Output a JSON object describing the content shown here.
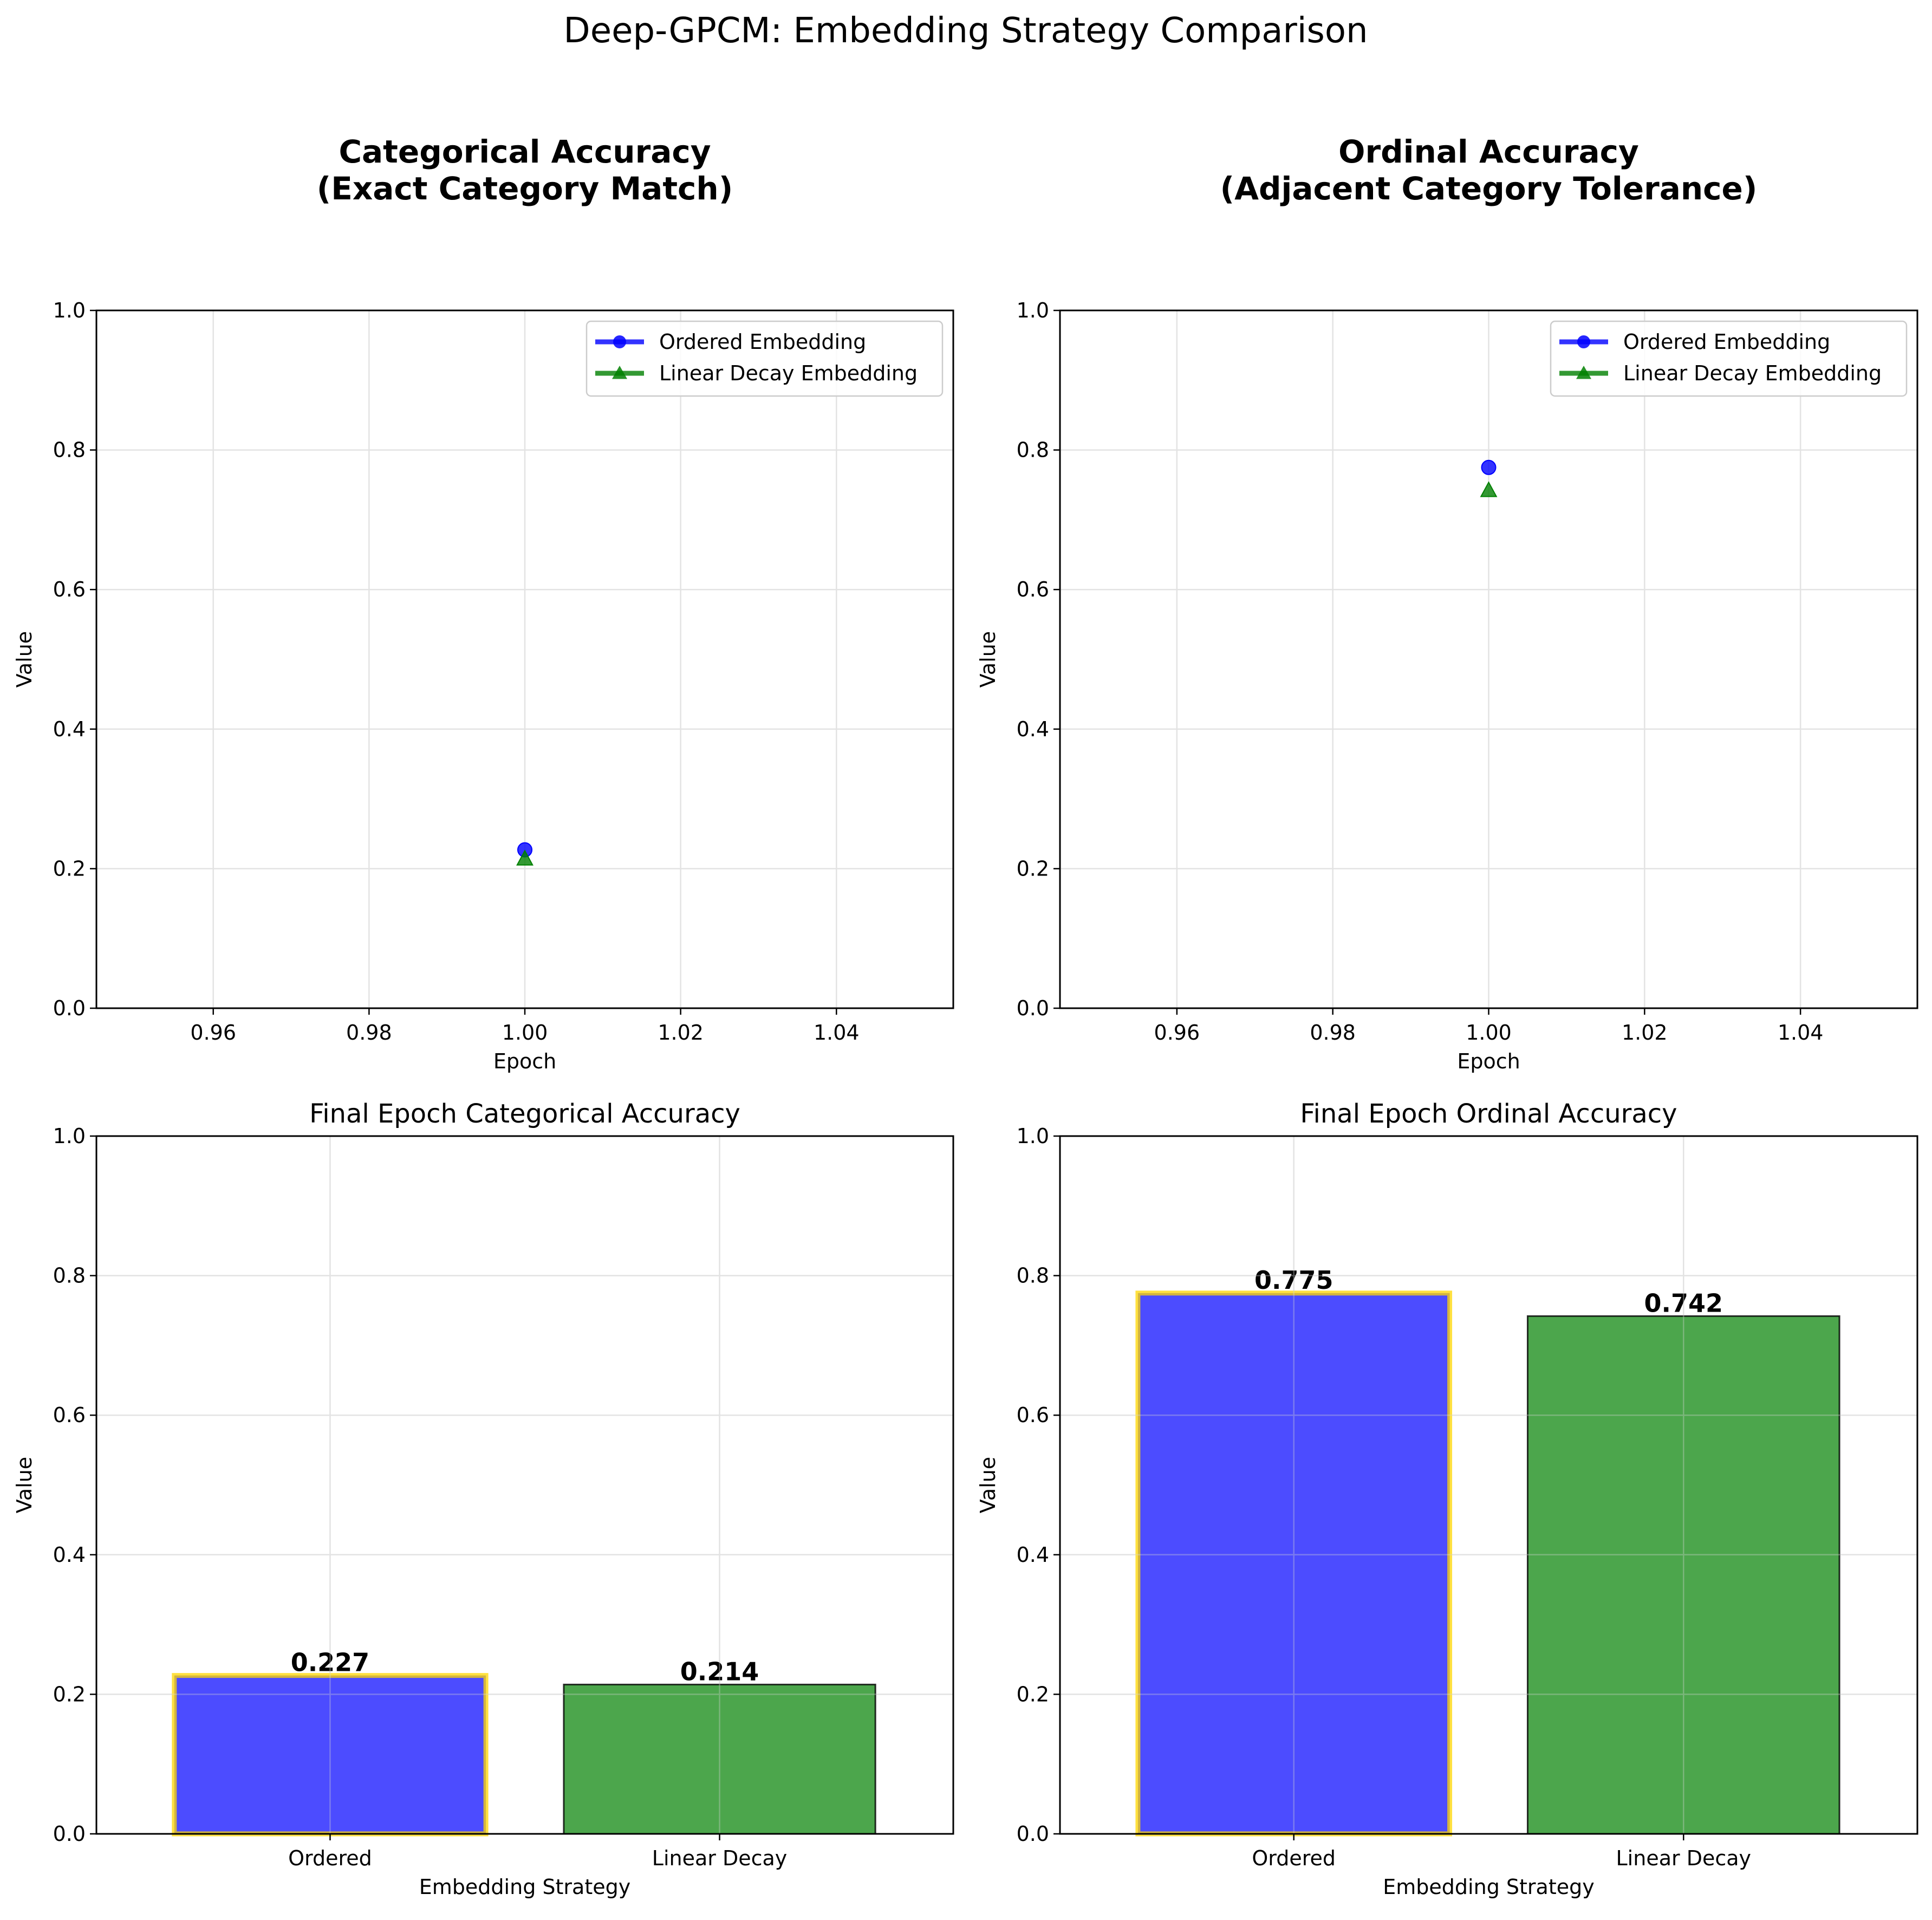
{
  "figure": {
    "suptitle": "Deep-GPCM: Embedding Strategy Comparison"
  },
  "colors": {
    "ordered": "#0000ff",
    "linear_decay": "#008000",
    "highlight": "#ffd700",
    "bar_edge": "#000000"
  },
  "chart_data": [
    {
      "type": "line",
      "title": [
        "Categorical Accuracy",
        "(Exact Category Match)"
      ],
      "title_bold": true,
      "xlabel": "Epoch",
      "ylabel": "Value",
      "xlim": [
        0.945,
        1.055
      ],
      "ylim": [
        0,
        1
      ],
      "xticks": [
        0.96,
        0.98,
        1.0,
        1.02,
        1.04
      ],
      "xtick_labels": [
        "0.96",
        "0.98",
        "1.00",
        "1.02",
        "1.04"
      ],
      "yticks": [
        0.0,
        0.2,
        0.4,
        0.6,
        0.8,
        1.0
      ],
      "ytick_labels": [
        "0.0",
        "0.2",
        "0.4",
        "0.6",
        "0.8",
        "1.0"
      ],
      "grid": true,
      "legend": "upper-right",
      "series": [
        {
          "name": "Ordered Embedding",
          "marker": "circle",
          "color": "#0000ff",
          "x": [
            1.0
          ],
          "y": [
            0.227
          ]
        },
        {
          "name": "Linear Decay Embedding",
          "marker": "triangle",
          "color": "#008000",
          "x": [
            1.0
          ],
          "y": [
            0.214
          ]
        }
      ]
    },
    {
      "type": "line",
      "title": [
        "Ordinal Accuracy",
        "(Adjacent Category Tolerance)"
      ],
      "title_bold": true,
      "xlabel": "Epoch",
      "ylabel": "Value",
      "xlim": [
        0.945,
        1.055
      ],
      "ylim": [
        0,
        1
      ],
      "xticks": [
        0.96,
        0.98,
        1.0,
        1.02,
        1.04
      ],
      "xtick_labels": [
        "0.96",
        "0.98",
        "1.00",
        "1.02",
        "1.04"
      ],
      "yticks": [
        0.0,
        0.2,
        0.4,
        0.6,
        0.8,
        1.0
      ],
      "ytick_labels": [
        "0.0",
        "0.2",
        "0.4",
        "0.6",
        "0.8",
        "1.0"
      ],
      "grid": true,
      "legend": "upper-right",
      "series": [
        {
          "name": "Ordered Embedding",
          "marker": "circle",
          "color": "#0000ff",
          "x": [
            1.0
          ],
          "y": [
            0.775
          ]
        },
        {
          "name": "Linear Decay Embedding",
          "marker": "triangle",
          "color": "#008000",
          "x": [
            1.0
          ],
          "y": [
            0.742
          ]
        }
      ]
    },
    {
      "type": "bar",
      "title": [
        "Final Epoch Categorical Accuracy"
      ],
      "title_bold": false,
      "xlabel": "Embedding Strategy",
      "ylabel": "Value",
      "ylim": [
        0,
        1
      ],
      "yticks": [
        0.0,
        0.2,
        0.4,
        0.6,
        0.8,
        1.0
      ],
      "ytick_labels": [
        "0.0",
        "0.2",
        "0.4",
        "0.6",
        "0.8",
        "1.0"
      ],
      "grid": true,
      "categories": [
        "Ordered",
        "Linear Decay"
      ],
      "values": [
        0.227,
        0.214
      ],
      "value_labels": [
        "0.227",
        "0.214"
      ],
      "bar_colors": [
        "#0000ff",
        "#008000"
      ],
      "highlighted": [
        true,
        false
      ]
    },
    {
      "type": "bar",
      "title": [
        "Final Epoch Ordinal Accuracy"
      ],
      "title_bold": false,
      "xlabel": "Embedding Strategy",
      "ylabel": "Value",
      "ylim": [
        0,
        1
      ],
      "yticks": [
        0.0,
        0.2,
        0.4,
        0.6,
        0.8,
        1.0
      ],
      "ytick_labels": [
        "0.0",
        "0.2",
        "0.4",
        "0.6",
        "0.8",
        "1.0"
      ],
      "grid": true,
      "categories": [
        "Ordered",
        "Linear Decay"
      ],
      "values": [
        0.775,
        0.742
      ],
      "value_labels": [
        "0.775",
        "0.742"
      ],
      "bar_colors": [
        "#0000ff",
        "#008000"
      ],
      "highlighted": [
        true,
        false
      ]
    }
  ]
}
